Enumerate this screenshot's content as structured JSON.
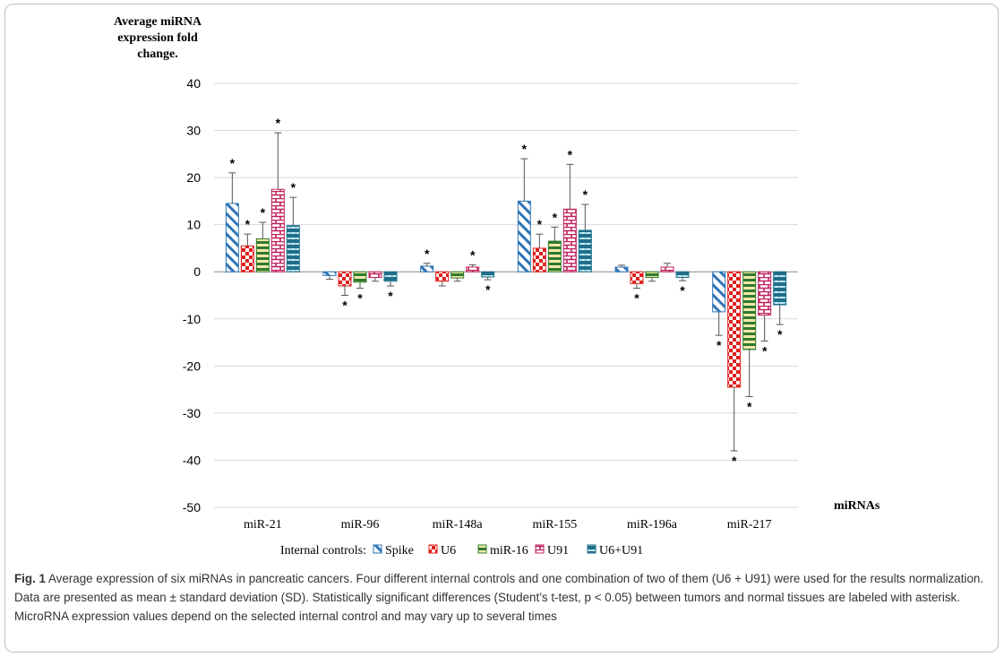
{
  "chart_data": {
    "type": "bar",
    "ylabel": [
      "Average miRNA",
      "expression fold",
      "change."
    ],
    "xlabel": "miRNAs",
    "ylim": [
      -50,
      40
    ],
    "yticks": [
      40,
      30,
      20,
      10,
      0,
      -10,
      -20,
      -30,
      -40,
      -50
    ],
    "grid": true,
    "legend_position": "bottom",
    "legend_title": "Internal controls:",
    "categories": [
      "miR-21",
      "miR-96",
      "miR-148a",
      "miR-155",
      "miR-196a",
      "miR-217"
    ],
    "series": [
      {
        "name": "Spike",
        "color": "#2e75b6",
        "pattern": "diagonal",
        "values": [
          14.5,
          -0.8,
          1.2,
          15,
          1,
          -8.5
        ],
        "errors": [
          6.5,
          0.8,
          0.6,
          9,
          0.4,
          5
        ],
        "significant": [
          true,
          false,
          true,
          true,
          false,
          true
        ]
      },
      {
        "name": "U6",
        "color": "#e0201b",
        "pattern": "checker",
        "values": [
          5.5,
          -3,
          -2,
          5,
          -2.5,
          -24.5
        ],
        "errors": [
          2.5,
          2,
          1,
          3,
          1,
          13.5
        ],
        "significant": [
          true,
          true,
          false,
          true,
          true,
          true
        ]
      },
      {
        "name": "miR-16",
        "color": "#2f7a2f",
        "pattern": "hstripe",
        "values": [
          7,
          -2.2,
          -1.3,
          6.5,
          -1.2,
          -16.5
        ],
        "errors": [
          3.5,
          1.3,
          0.7,
          3,
          0.8,
          10
        ],
        "significant": [
          true,
          true,
          false,
          true,
          false,
          true
        ]
      },
      {
        "name": "U91",
        "color": "#c0205c",
        "pattern": "brick",
        "values": [
          17.5,
          -1.2,
          1,
          13.3,
          1,
          -9.2
        ],
        "errors": [
          12,
          0.8,
          0.5,
          9.5,
          0.8,
          5.5
        ],
        "significant": [
          true,
          false,
          true,
          true,
          false,
          true
        ]
      },
      {
        "name": "U6+U91",
        "color": "#1f6f8b",
        "pattern": "dots",
        "values": [
          9.8,
          -2,
          -1.1,
          8.8,
          -1.2,
          -7
        ],
        "errors": [
          6,
          1,
          0.6,
          5.5,
          0.7,
          4.2
        ],
        "significant": [
          true,
          true,
          true,
          true,
          true,
          true
        ]
      }
    ]
  },
  "caption": {
    "label": "Fig. 1",
    "text": " Average expression of six miRNAs in pancreatic cancers. Four different internal controls and one combination of two of them (U6 + U91) were used for the results normalization. Data are presented as mean ± standard deviation (SD). Statistically significant differences (Student’s t-test, p < 0.05) between tumors and normal tissues are labeled with asterisk. MicroRNA expression values depend on the selected internal control and may vary up to several times"
  }
}
